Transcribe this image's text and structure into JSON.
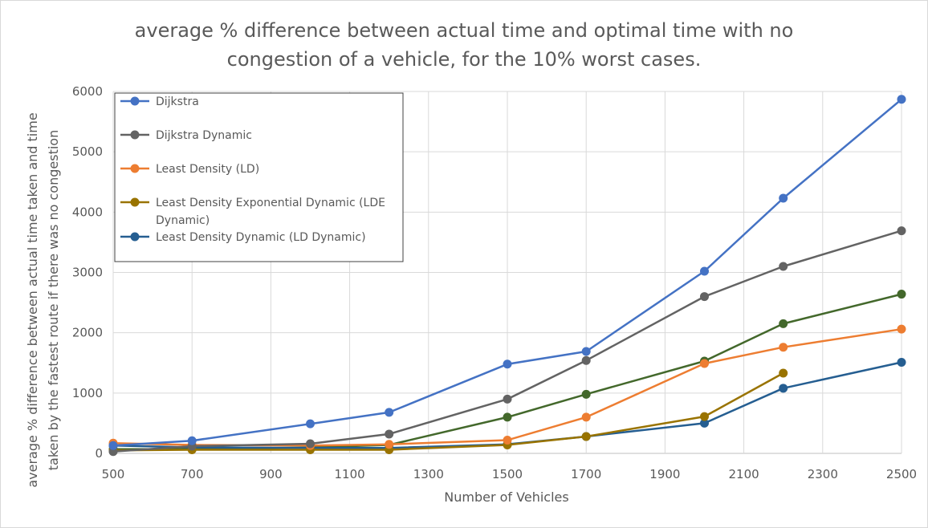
{
  "chart_data": {
    "type": "line",
    "title_lines": [
      "average % difference between actual time and optimal time with no",
      "congestion of a vehicle, for the 10% worst cases."
    ],
    "xlabel": "Number of Vehicles",
    "ylabel_lines": [
      "average % difference between actual time taken and time",
      "taken by the fastest route if there was no congestion"
    ],
    "xlim": [
      500,
      2500
    ],
    "ylim": [
      0,
      6000
    ],
    "x_ticks": [
      500,
      700,
      900,
      1100,
      1300,
      1500,
      1700,
      1900,
      2100,
      2300,
      2500
    ],
    "y_ticks": [
      0,
      1000,
      2000,
      3000,
      4000,
      5000,
      6000
    ],
    "grid": true,
    "legend_position": "top-left",
    "series": [
      {
        "name": "Dijkstra",
        "color": "#4472c4",
        "points": [
          [
            500,
            130
          ],
          [
            700,
            210
          ],
          [
            1000,
            490
          ],
          [
            1200,
            680
          ],
          [
            1500,
            1480
          ],
          [
            1700,
            1690
          ],
          [
            2000,
            3020
          ],
          [
            2200,
            4230
          ],
          [
            2500,
            5870
          ]
        ]
      },
      {
        "name": "Dijkstra Dynamic",
        "color": "#636363",
        "points": [
          [
            500,
            30
          ],
          [
            700,
            120
          ],
          [
            1000,
            160
          ],
          [
            1200,
            320
          ],
          [
            1500,
            900
          ],
          [
            1700,
            1540
          ],
          [
            2000,
            2600
          ],
          [
            2200,
            3100
          ],
          [
            2500,
            3690
          ]
        ]
      },
      {
        "name": "Least Density (LD)",
        "color": "#ed7d31",
        "points": [
          [
            500,
            170
          ],
          [
            700,
            140
          ],
          [
            1000,
            130
          ],
          [
            1200,
            150
          ],
          [
            1500,
            220
          ],
          [
            1700,
            600
          ],
          [
            2000,
            1490
          ],
          [
            2200,
            1760
          ],
          [
            2500,
            2060
          ]
        ]
      },
      {
        "name": "Least Density Exponential Dynamic (LDE Dynamic)",
        "color": "#997300",
        "points": [
          [
            500,
            50
          ],
          [
            700,
            60
          ],
          [
            1000,
            60
          ],
          [
            1200,
            60
          ],
          [
            1500,
            140
          ],
          [
            1700,
            280
          ],
          [
            2000,
            610
          ],
          [
            2200,
            1330
          ]
        ]
      },
      {
        "name": "Least Density Dynamic (LD Dynamic)",
        "color": "#255e91",
        "points": [
          [
            500,
            130
          ],
          [
            700,
            100
          ],
          [
            1000,
            90
          ],
          [
            1200,
            90
          ],
          [
            1500,
            150
          ],
          [
            1700,
            280
          ],
          [
            2000,
            500
          ],
          [
            2200,
            1080
          ],
          [
            2500,
            1510
          ]
        ]
      },
      {
        "color": "#43682b",
        "points": [
          [
            500,
            70
          ],
          [
            700,
            70
          ],
          [
            1000,
            100
          ],
          [
            1200,
            140
          ],
          [
            1500,
            600
          ],
          [
            1700,
            980
          ],
          [
            2000,
            1530
          ],
          [
            2200,
            2150
          ],
          [
            2500,
            2640
          ]
        ]
      }
    ]
  }
}
